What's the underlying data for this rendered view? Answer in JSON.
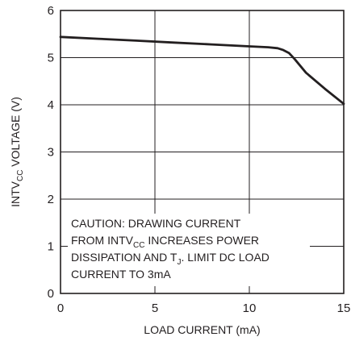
{
  "chart_data": {
    "type": "line",
    "title": "",
    "xlabel": "LOAD CURRENT (mA)",
    "ylabel": {
      "prefix": "INTV",
      "subscript": "CC",
      "suffix": " VOLTAGE (V)"
    },
    "xlim": [
      0,
      15
    ],
    "ylim": [
      0,
      6
    ],
    "xticks": [
      0,
      5,
      10,
      15
    ],
    "yticks": [
      0,
      1,
      2,
      3,
      4,
      5,
      6
    ],
    "grid": true,
    "series": [
      {
        "x": [
          0,
          2,
          4,
          6,
          8,
          10,
          11,
          11.5,
          11.8,
          12.1,
          12.4,
          13,
          14,
          15
        ],
        "y": [
          5.44,
          5.4,
          5.36,
          5.32,
          5.28,
          5.24,
          5.22,
          5.2,
          5.16,
          5.1,
          4.97,
          4.68,
          4.34,
          4.02
        ]
      }
    ],
    "annotation": {
      "lines": [
        [
          {
            "text": "CAUTION: DRAWING CURRENT"
          }
        ],
        [
          {
            "text": "FROM INTV"
          },
          {
            "text": "CC",
            "sub": true
          },
          {
            "text": " INCREASES POWER"
          }
        ],
        [
          {
            "text": "DISSIPATION AND T"
          },
          {
            "text": "J",
            "sub": true
          },
          {
            "text": ". LIMIT DC LOAD"
          }
        ],
        [
          {
            "text": "CURRENT TO 3mA"
          }
        ]
      ]
    }
  }
}
